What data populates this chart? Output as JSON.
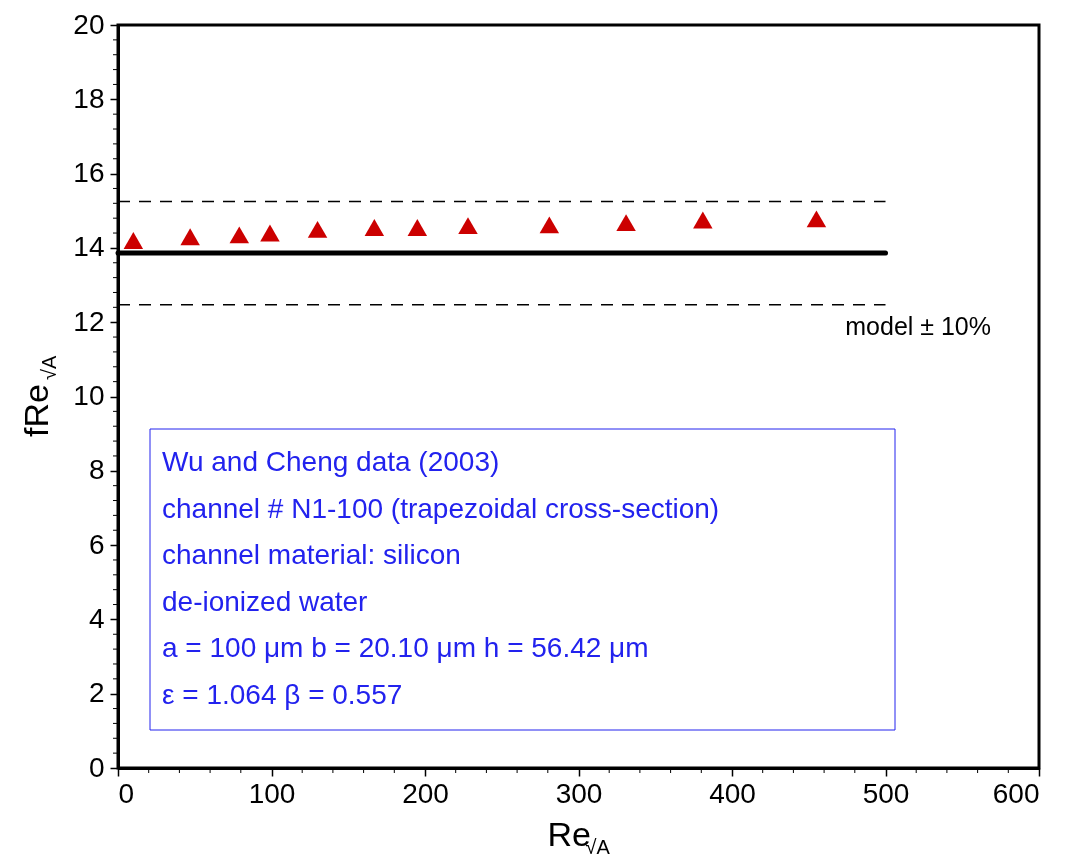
{
  "chart_data": {
    "type": "scatter",
    "xlabel": "Re$_{√A}$",
    "ylabel": "fRe$_{√A}$",
    "xlim": [
      0,
      600
    ],
    "ylim": [
      0,
      20
    ],
    "xticks": [
      0,
      {
        "value": 20,
        "label": null
      },
      {
        "value": 40,
        "label": null
      },
      {
        "value": 60,
        "label": null
      },
      {
        "value": 80,
        "label": null
      },
      100,
      {
        "value": 120,
        "label": null
      },
      {
        "value": 140,
        "label": null
      },
      {
        "value": 160,
        "label": null
      },
      {
        "value": 180,
        "label": null
      },
      200,
      {
        "value": 220,
        "label": null
      },
      {
        "value": 240,
        "label": null
      },
      {
        "value": 260,
        "label": null
      },
      {
        "value": 280,
        "label": null
      },
      300,
      {
        "value": 320,
        "label": null
      },
      {
        "value": 340,
        "label": null
      },
      {
        "value": 360,
        "label": null
      },
      {
        "value": 380,
        "label": null
      },
      400,
      {
        "value": 420,
        "label": null
      },
      {
        "value": 440,
        "label": null
      },
      {
        "value": 460,
        "label": null
      },
      {
        "value": 480,
        "label": null
      },
      500,
      {
        "value": 520,
        "label": null
      },
      {
        "value": 540,
        "label": null
      },
      {
        "value": 560,
        "label": null
      },
      {
        "value": 580,
        "label": null
      },
      600
    ],
    "yticks": [
      0,
      {
        "value": 0.4,
        "label": null
      },
      {
        "value": 0.8,
        "label": null
      },
      {
        "value": 1.2,
        "label": null
      },
      {
        "value": 1.6,
        "label": null
      },
      2,
      {
        "value": 2.4,
        "label": null
      },
      {
        "value": 2.8,
        "label": null
      },
      {
        "value": 3.2,
        "label": null
      },
      {
        "value": 3.6,
        "label": null
      },
      4,
      {
        "value": 4.4,
        "label": null
      },
      {
        "value": 4.8,
        "label": null
      },
      {
        "value": 5.2,
        "label": null
      },
      {
        "value": 5.6,
        "label": null
      },
      6,
      {
        "value": 6.4,
        "label": null
      },
      {
        "value": 6.8,
        "label": null
      },
      {
        "value": 7.2,
        "label": null
      },
      {
        "value": 7.6,
        "label": null
      },
      8,
      {
        "value": 8.4,
        "label": null
      },
      {
        "value": 8.8,
        "label": null
      },
      {
        "value": 9.2,
        "label": null
      },
      {
        "value": 9.6,
        "label": null
      },
      10,
      {
        "value": 10.4,
        "label": null
      },
      {
        "value": 10.8,
        "label": null
      },
      {
        "value": 11.2,
        "label": null
      },
      {
        "value": 11.6,
        "label": null
      },
      12,
      {
        "value": 12.4,
        "label": null
      },
      {
        "value": 12.8,
        "label": null
      },
      {
        "value": 13.2,
        "label": null
      },
      {
        "value": 13.6,
        "label": null
      },
      14,
      {
        "value": 14.4,
        "label": null
      },
      {
        "value": 14.8,
        "label": null
      },
      {
        "value": 15.2,
        "label": null
      },
      {
        "value": 15.6,
        "label": null
      },
      16,
      {
        "value": 16.4,
        "label": null
      },
      {
        "value": 16.8,
        "label": null
      },
      {
        "value": 17.2,
        "label": null
      },
      {
        "value": 17.6,
        "label": null
      },
      18,
      {
        "value": 18.4,
        "label": null
      },
      {
        "value": 18.8,
        "label": null
      },
      {
        "value": 19.2,
        "label": null
      },
      {
        "value": 19.6,
        "label": null
      },
      20
    ],
    "marker": "triangle",
    "series": [
      {
        "color": "#cc0000",
        "x": [
          10,
          47,
          79,
          99,
          130,
          167,
          195,
          228,
          281,
          331,
          381,
          455
        ],
        "values": [
          14.2,
          14.3,
          14.35,
          14.4,
          14.5,
          14.55,
          14.55,
          14.6,
          14.62,
          14.68,
          14.75,
          14.78
        ]
      },
      {
        "type": "line",
        "color": "#000000",
        "line_style": "solid",
        "marker": "none",
        "x": [
          0,
          500
        ],
        "values": [
          13.86,
          13.86
        ]
      },
      {
        "type": "line",
        "color": "#000000",
        "line_style": "dashed",
        "marker": "none",
        "x": [
          0,
          500
        ],
        "values": [
          15.25,
          15.25
        ]
      },
      {
        "type": "line",
        "color": "#000000",
        "line_style": "dashed",
        "marker": "none",
        "x": [
          0,
          500
        ],
        "values": [
          12.47,
          12.47
        ]
      }
    ],
    "annotations": [
      "model ± 10%",
      "Wu and Cheng data (2003)",
      "channel # N1-100 (trapezoidal cross-section)",
      "channel material: silicon",
      "de-ionized water",
      "a = 100 μm b = 20.10 μm h = 56.42 μm",
      "ε = 1.064 β = 0.557"
    ]
  }
}
